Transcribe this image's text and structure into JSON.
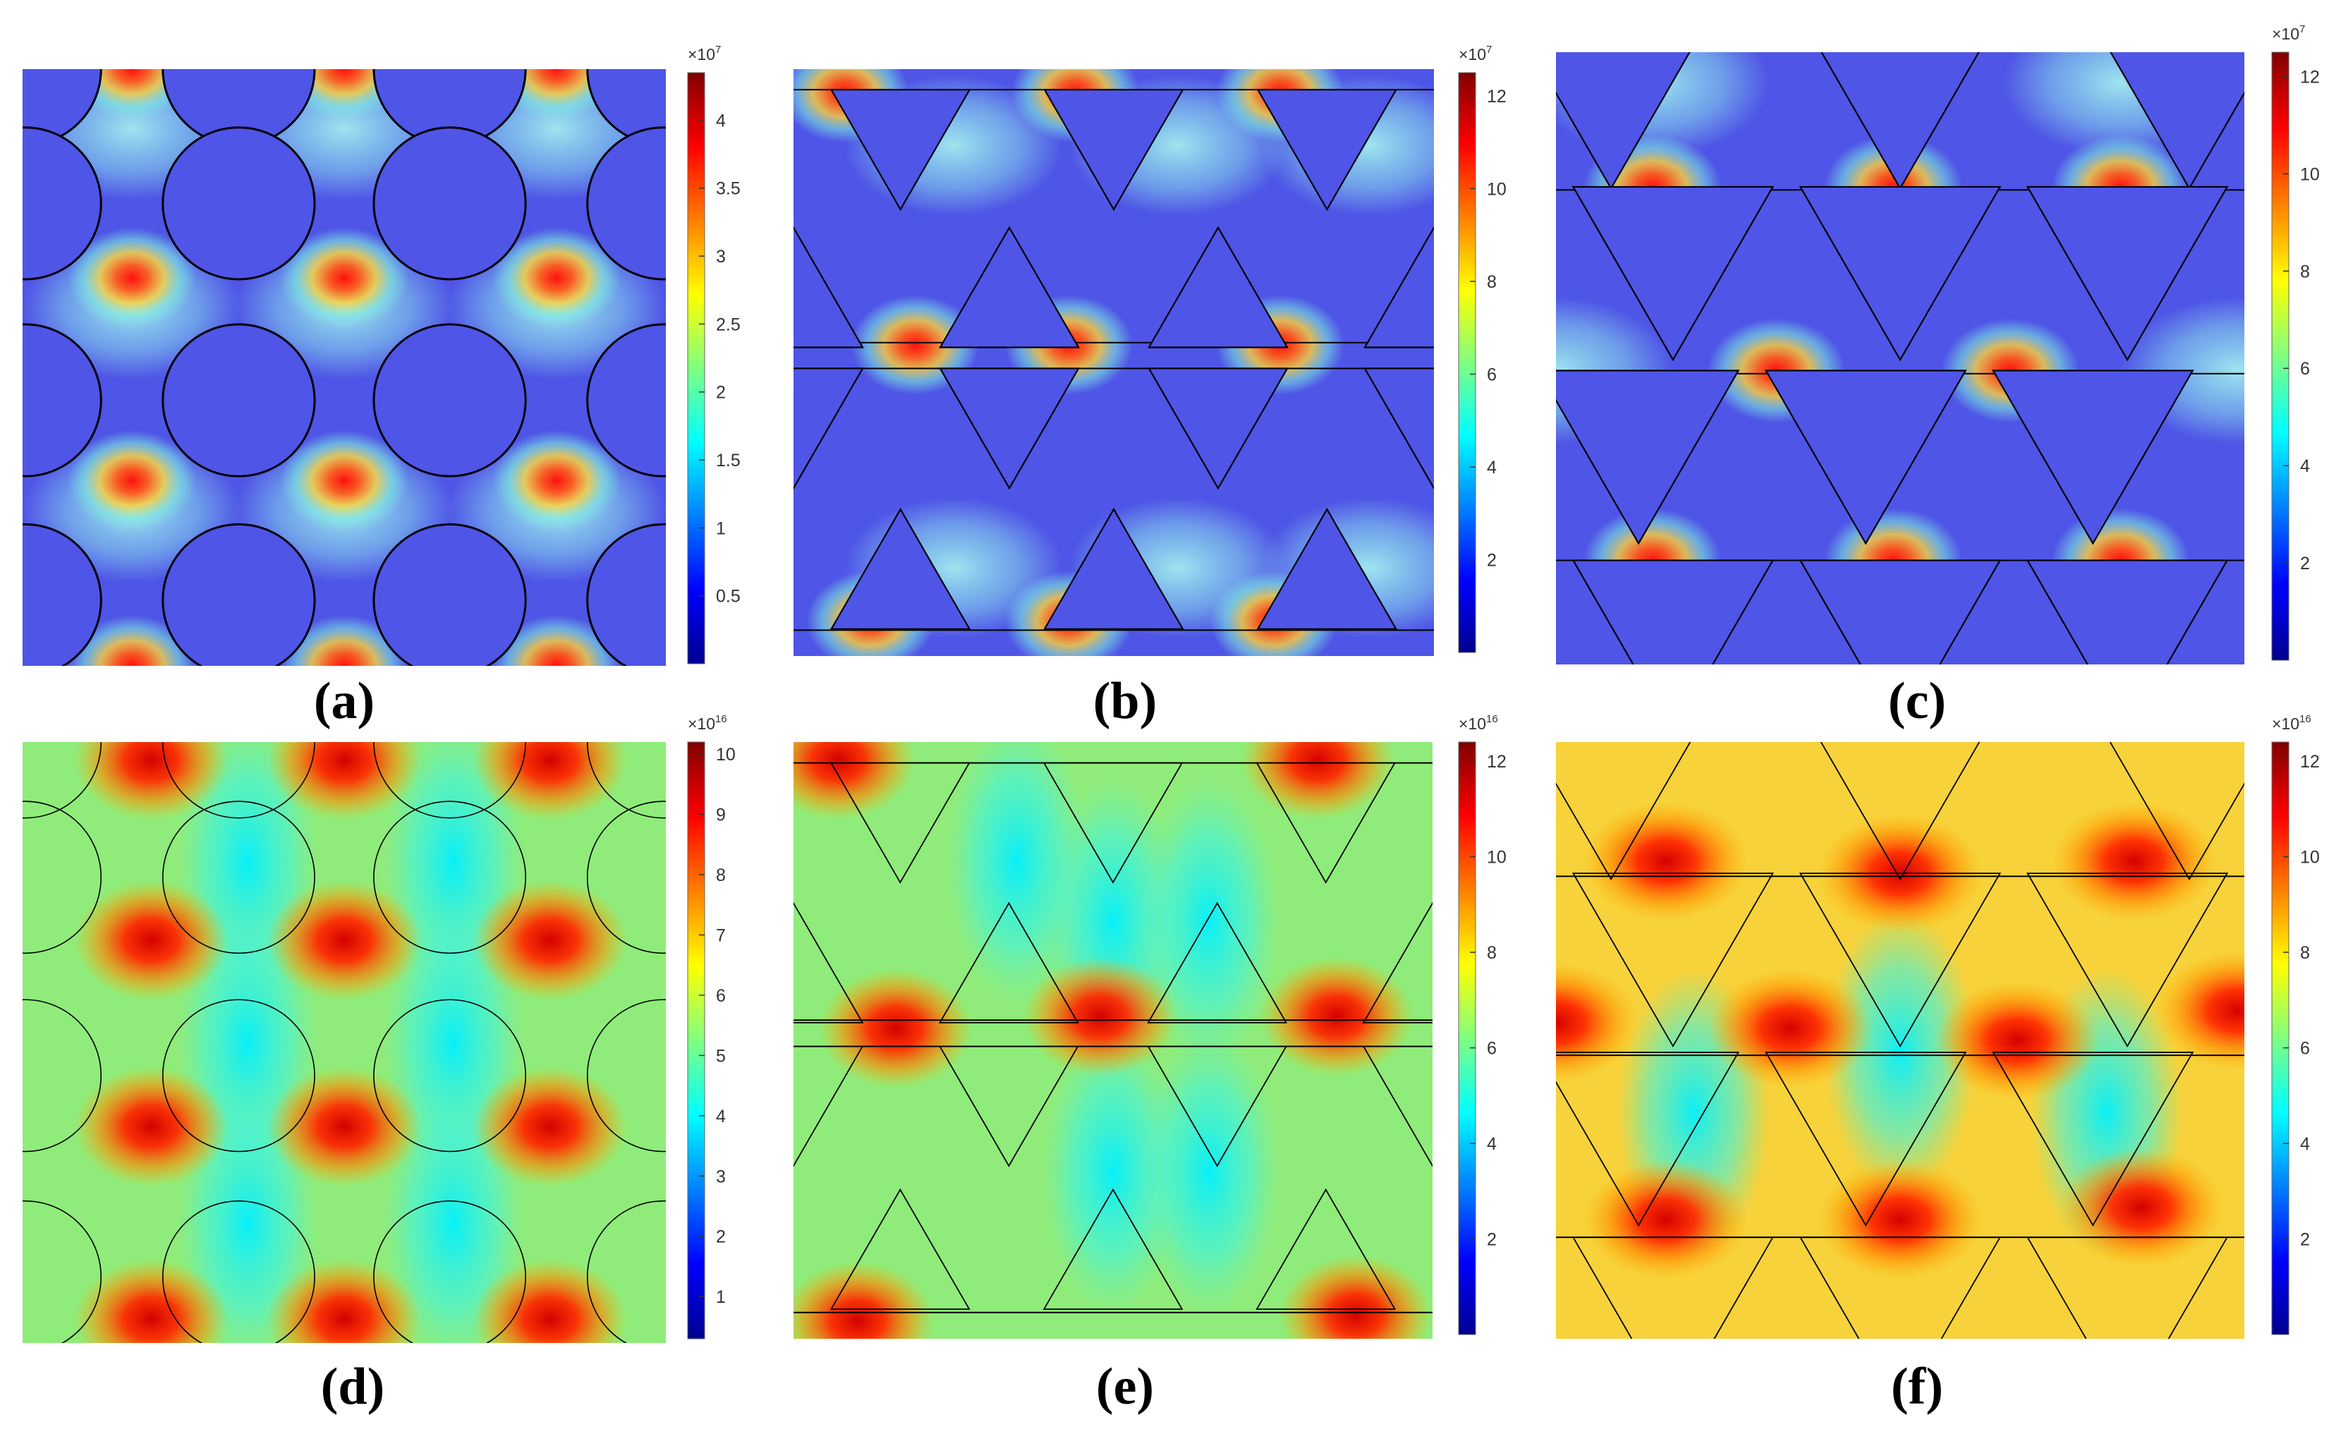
{
  "figure": {
    "panels": [
      {
        "id": "a",
        "label": "(a)",
        "multiplier": "×10",
        "exponent": "7",
        "field": "electric",
        "geometry": "circles",
        "ticks": [
          "0.5",
          "1",
          "1.5",
          "2",
          "2.5",
          "3",
          "3.5",
          "4"
        ],
        "cmin": 0,
        "cmax": 4.35
      },
      {
        "id": "b",
        "label": "(b)",
        "multiplier": "×10",
        "exponent": "7",
        "field": "electric",
        "geometry": "triangles-b",
        "ticks": [
          "2",
          "4",
          "6",
          "8",
          "10",
          "12"
        ],
        "cmin": 0,
        "cmax": 12.5
      },
      {
        "id": "c",
        "label": "(c)",
        "multiplier": "×10",
        "exponent": "7",
        "field": "electric",
        "geometry": "triangles-c",
        "ticks": [
          "2",
          "4",
          "6",
          "8",
          "10",
          "12"
        ],
        "cmin": 0,
        "cmax": 12.5
      },
      {
        "id": "d",
        "label": "(d)",
        "multiplier": "×10",
        "exponent": "16",
        "field": "density",
        "geometry": "circles",
        "ticks": [
          "1",
          "2",
          "3",
          "4",
          "5",
          "6",
          "7",
          "8",
          "9",
          "10"
        ],
        "cmin": 0.3,
        "cmax": 10.2
      },
      {
        "id": "e",
        "label": "(e)",
        "multiplier": "×10",
        "exponent": "16",
        "field": "density",
        "geometry": "triangles-b",
        "ticks": [
          "2",
          "4",
          "6",
          "8",
          "10",
          "12"
        ],
        "cmin": 0,
        "cmax": 12.4
      },
      {
        "id": "f",
        "label": "(f)",
        "multiplier": "×10",
        "exponent": "16",
        "field": "density",
        "geometry": "triangles-c",
        "ticks": [
          "2",
          "4",
          "6",
          "8",
          "10",
          "12"
        ],
        "cmin": 0,
        "cmax": 12.4
      }
    ],
    "colormap": "jet",
    "colors": {
      "outline": "#000000",
      "inclusion_fill": "#4f55e6",
      "background": "#ffffff"
    }
  },
  "chart_data": [
    {
      "type": "heatmap",
      "title": "",
      "panel": "(a)",
      "colorbar_ticks": [
        0.5,
        1,
        1.5,
        2,
        2.5,
        3,
        3.5,
        4
      ],
      "colorbar_scale": "×10^7",
      "value_range": [
        0,
        4.35
      ]
    },
    {
      "type": "heatmap",
      "title": "",
      "panel": "(b)",
      "colorbar_ticks": [
        2,
        4,
        6,
        8,
        10,
        12
      ],
      "colorbar_scale": "×10^7",
      "value_range": [
        0,
        12.5
      ]
    },
    {
      "type": "heatmap",
      "title": "",
      "panel": "(c)",
      "colorbar_ticks": [
        2,
        4,
        6,
        8,
        10,
        12
      ],
      "colorbar_scale": "×10^7",
      "value_range": [
        0,
        12.5
      ]
    },
    {
      "type": "heatmap",
      "title": "",
      "panel": "(d)",
      "colorbar_ticks": [
        1,
        2,
        3,
        4,
        5,
        6,
        7,
        8,
        9,
        10
      ],
      "colorbar_scale": "×10^16",
      "value_range": [
        0.3,
        10.2
      ]
    },
    {
      "type": "heatmap",
      "title": "",
      "panel": "(e)",
      "colorbar_ticks": [
        2,
        4,
        6,
        8,
        10,
        12
      ],
      "colorbar_scale": "×10^16",
      "value_range": [
        0,
        12.4
      ]
    },
    {
      "type": "heatmap",
      "title": "",
      "panel": "(f)",
      "colorbar_ticks": [
        2,
        4,
        6,
        8,
        10,
        12
      ],
      "colorbar_scale": "×10^16",
      "value_range": [
        0,
        12.4
      ]
    }
  ]
}
